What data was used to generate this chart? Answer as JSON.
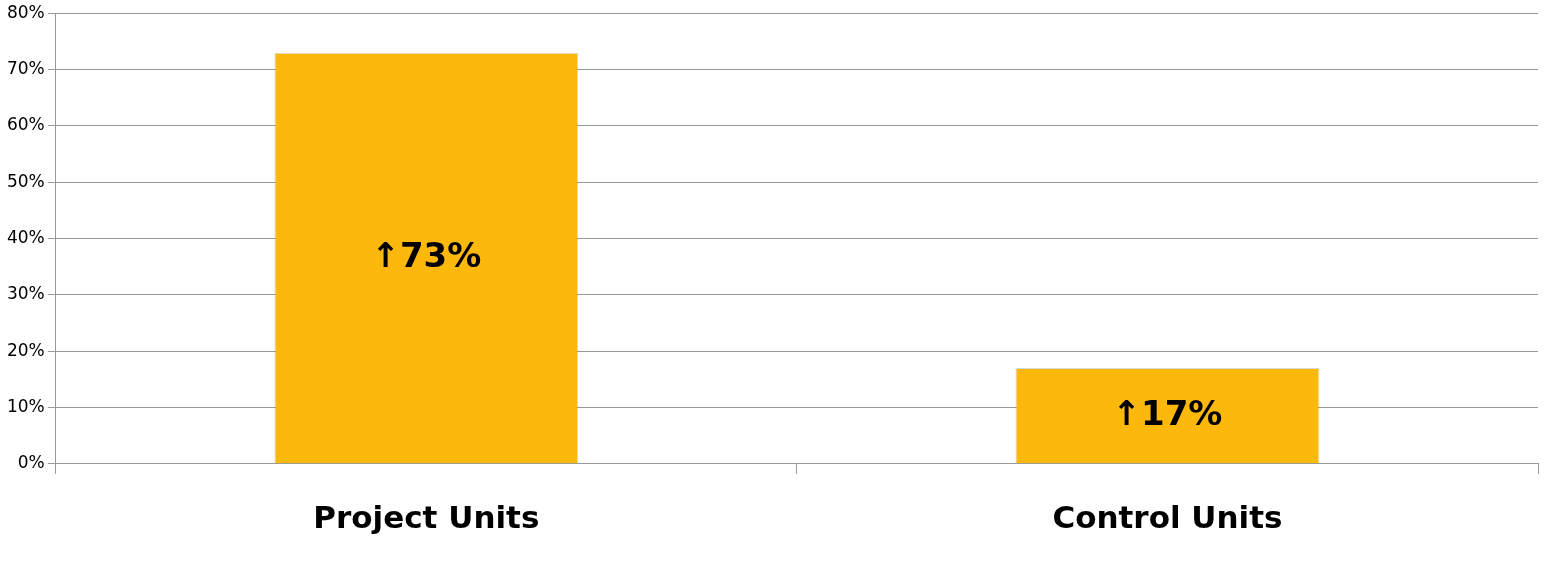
{
  "chart_data": {
    "type": "bar",
    "categories": [
      "Project Units",
      "Control Units"
    ],
    "values": [
      73,
      17
    ],
    "color": "#fcb90c",
    "value_labels": [
      "↑73%",
      "↑17%"
    ],
    "ylim": [
      0,
      80
    ],
    "yticks": [
      {
        "value": 0,
        "label": "0%"
      },
      {
        "value": 10,
        "label": "10%"
      },
      {
        "value": 20,
        "label": "20%"
      },
      {
        "value": 30,
        "label": "30%"
      },
      {
        "value": 40,
        "label": "40%"
      },
      {
        "value": 50,
        "label": "50%"
      },
      {
        "value": 60,
        "label": "60%"
      },
      {
        "value": 70,
        "label": "70%"
      },
      {
        "value": 80,
        "label": "80%"
      }
    ],
    "grid": "y",
    "legend": false
  }
}
